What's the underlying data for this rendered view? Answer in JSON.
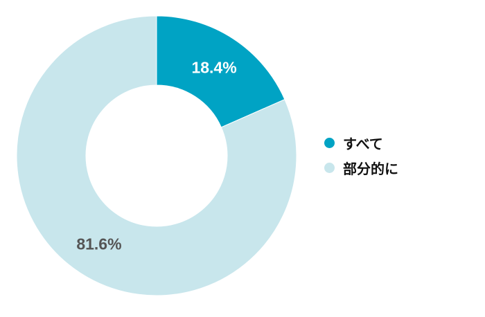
{
  "chart_data": {
    "type": "pie",
    "donut": true,
    "categories": [
      "すべて",
      "部分的に"
    ],
    "values": [
      18.4,
      81.6
    ],
    "data_labels": [
      "18.4%",
      "81.6%"
    ],
    "colors": [
      "#00a3c4",
      "#c8e6ec"
    ],
    "label_colors": [
      "#ffffff",
      "#555555"
    ],
    "legend": {
      "position": "right",
      "entries": [
        "すべて",
        "部分的に"
      ]
    }
  }
}
